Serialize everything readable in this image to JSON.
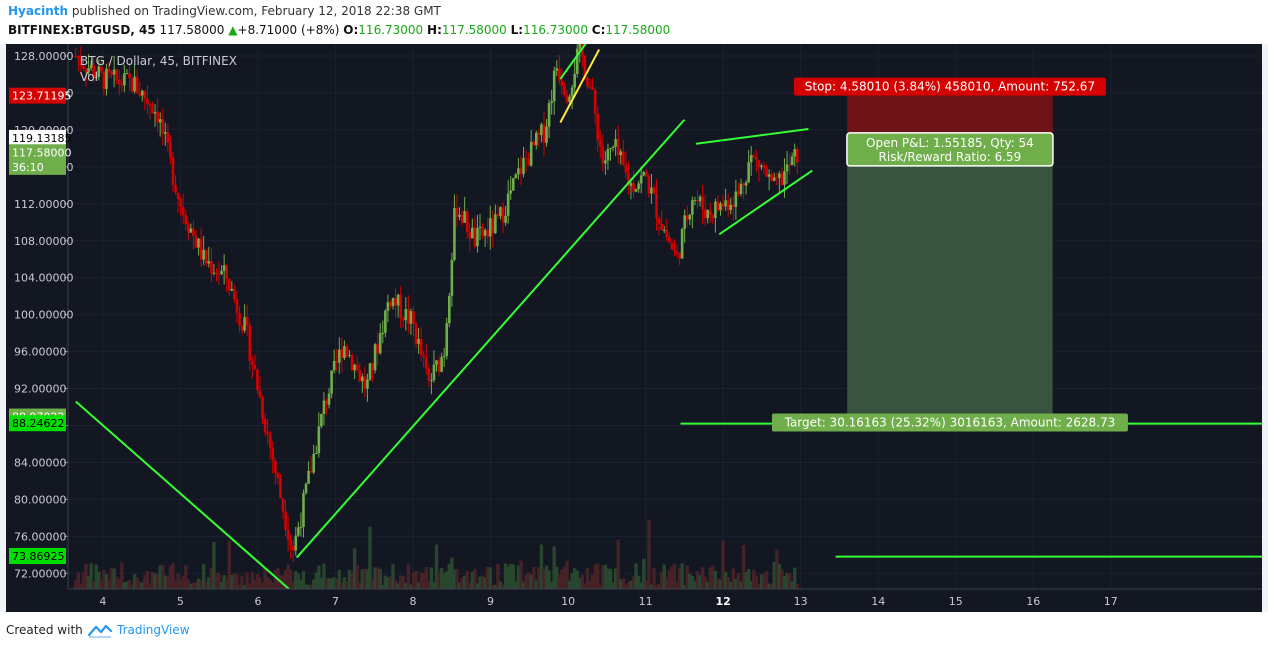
{
  "header": {
    "author": "Hyacinth",
    "published": "published on TradingView.com, February 12, 2018 22:38 GMT",
    "symbol": "BITFINEX:BTGUSD, 45",
    "last": "117.58000",
    "change_arrow": "▲",
    "change": "+8.71000 (+8%)",
    "o_label": "O:",
    "o_value": "116.73000",
    "h_label": "H:",
    "h_value": "117.58000",
    "l_label": "L:",
    "l_value": "116.73000",
    "c_label": "C:",
    "c_value": "117.58000"
  },
  "chart_overlay": {
    "title": "BTG / Dollar, 45, BITFINEX",
    "volume_label": "Vol"
  },
  "chart_data": {
    "type": "candlestick",
    "y_axis": {
      "ticks": [
        "128.00000",
        "124.00000",
        "120.00000",
        "116.00000",
        "112.00000",
        "108.00000",
        "104.00000",
        "100.00000",
        "96.00000",
        "92.00000",
        "88.00000",
        "84.00000",
        "80.00000",
        "76.00000",
        "72.00000"
      ],
      "tick_values": [
        128,
        124,
        120,
        116,
        112,
        108,
        104,
        100,
        96,
        92,
        88,
        84,
        80,
        76,
        72
      ],
      "range": [
        70.3,
        129.3
      ]
    },
    "x_axis": {
      "ticks": [
        "4",
        "5",
        "6",
        "7",
        "8",
        "9",
        "10",
        "11",
        "12",
        "13",
        "14",
        "15",
        "16",
        "17"
      ],
      "tick_values": [
        4,
        5,
        6,
        7,
        8,
        9,
        10,
        11,
        12,
        13,
        14,
        15,
        16,
        17
      ],
      "range": [
        3.55,
        18.95
      ],
      "bold_ticks": [
        "12"
      ]
    },
    "price_labels": [
      {
        "text": "123.71195",
        "value": 123.71195,
        "color": "#d50000",
        "text_color": "#ffffff"
      },
      {
        "text": "119.13185",
        "value": 119.13185,
        "color": "#ffffff",
        "text_color": "#000000"
      },
      {
        "text": "117.58000",
        "value": 117.58,
        "color": "#6fae4a",
        "text_color": "#ffffff"
      },
      {
        "text": "36:10",
        "value": 116.0,
        "color": "#6fae4a",
        "text_color": "#ffffff"
      },
      {
        "text": "88.97022",
        "value": 88.97022,
        "color": "#6fae4a",
        "text_color": "#ffffff"
      },
      {
        "text": "88.24622",
        "value": 88.24622,
        "color": "#00e000",
        "text_color": "#000000"
      },
      {
        "text": "73.86925",
        "value": 73.86925,
        "color": "#00e000",
        "text_color": "#000000"
      }
    ],
    "price_path": [
      [
        3.65,
        128
      ],
      [
        4.0,
        125.5
      ],
      [
        4.4,
        125
      ],
      [
        4.7,
        122
      ],
      [
        5.0,
        112
      ],
      [
        5.3,
        106
      ],
      [
        5.6,
        104
      ],
      [
        5.85,
        98
      ],
      [
        6.1,
        88
      ],
      [
        6.3,
        80
      ],
      [
        6.45,
        74.5
      ],
      [
        6.6,
        80
      ],
      [
        6.85,
        90
      ],
      [
        7.1,
        97
      ],
      [
        7.4,
        92
      ],
      [
        7.7,
        102
      ],
      [
        8.0,
        99
      ],
      [
        8.2,
        92.5
      ],
      [
        8.4,
        96
      ],
      [
        8.55,
        112
      ],
      [
        8.8,
        108
      ],
      [
        9.1,
        110
      ],
      [
        9.4,
        116
      ],
      [
        9.7,
        120
      ],
      [
        9.85,
        127
      ],
      [
        10.0,
        124
      ],
      [
        10.15,
        129
      ],
      [
        10.3,
        124
      ],
      [
        10.45,
        116.5
      ],
      [
        10.6,
        118
      ],
      [
        10.8,
        114
      ],
      [
        11.0,
        115
      ],
      [
        11.2,
        110
      ],
      [
        11.4,
        106
      ],
      [
        11.6,
        113
      ],
      [
        11.8,
        111
      ],
      [
        12.0,
        112
      ],
      [
        12.2,
        113
      ],
      [
        12.35,
        117
      ],
      [
        12.5,
        116
      ],
      [
        12.65,
        113.5
      ],
      [
        12.85,
        116
      ],
      [
        12.97,
        117.58
      ]
    ],
    "trend_lines": [
      {
        "color": "#33ff33",
        "points": [
          [
            3.65,
            90.6
          ],
          [
            6.4,
            70.3
          ]
        ]
      },
      {
        "color": "#33ff33",
        "points": [
          [
            6.5,
            73.7
          ],
          [
            11.5,
            121.1
          ]
        ]
      },
      {
        "color": "#33ff33",
        "points": [
          [
            9.9,
            125.5
          ],
          [
            10.25,
            129.6
          ]
        ]
      },
      {
        "color": "#ffeb3b",
        "points": [
          [
            9.9,
            120.8
          ],
          [
            10.4,
            128.7
          ]
        ]
      },
      {
        "color": "#33ff33",
        "points": [
          [
            11.65,
            118.5
          ],
          [
            13.1,
            120.1
          ]
        ]
      },
      {
        "color": "#33ff33",
        "points": [
          [
            11.95,
            108.7
          ],
          [
            13.15,
            115.6
          ]
        ]
      },
      {
        "color": "#33ff33",
        "points": [
          [
            11.45,
            88.2
          ],
          [
            18.95,
            88.2
          ]
        ]
      },
      {
        "color": "#33ff33",
        "points": [
          [
            13.45,
            73.8
          ],
          [
            18.95,
            73.8
          ]
        ]
      }
    ],
    "position": {
      "entry": 119.13185,
      "stop": 123.71195,
      "target": 88.97022,
      "x_start": 13.6,
      "x_end": 16.25
    },
    "annotations": {
      "stop": "Stop: 4.58010 (3.84%) 458010, Amount: 752.67",
      "open_pnl": "Open P&L: 1.55185, Qty: 54",
      "risk_reward": "Risk/Reward Ratio: 6.59",
      "target": "Target: 30.16163 (25.32%) 3016163, Amount: 2628.73"
    },
    "colors": {
      "background": "#131722",
      "up": "#6fae4a",
      "down": "#d50000",
      "stop_zone": "#6e1419",
      "target_zone": "#38533e"
    }
  },
  "footer": {
    "created_with": "Created with",
    "brand": "TradingView"
  }
}
